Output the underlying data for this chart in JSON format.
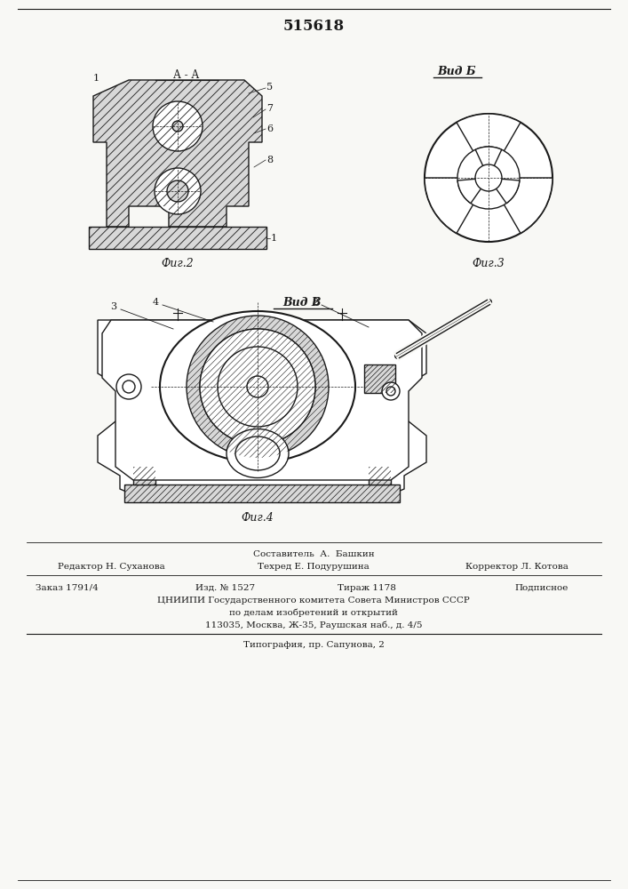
{
  "title": "515618",
  "background_color": "#f8f8f5",
  "fig2_caption": "Фиг.2",
  "fig3_caption": "Фиг.3",
  "fig4_caption": "Фиг.4",
  "view_b_label": "Вид Б",
  "view_v_label": "Вид В",
  "aa_label": "А - А",
  "footer_line1": "Составитель  А.  Башкин",
  "footer_line2_left": "Редактор Н. Суханова",
  "footer_line2_mid": "Техред Е. Подурушина",
  "footer_line2_right": "Корректор Л. Котова",
  "footer_line3_left": "Заказ 1791/4",
  "footer_line3_mid1": "Изд. № 1527",
  "footer_line3_mid2": "Тираж 1178",
  "footer_line3_right": "Подписное",
  "footer_line4": "ЦНИИПИ Государственного комитета Совета Министров СССР",
  "footer_line5": "по делам изобретений и открытий",
  "footer_line6": "113035, Москва, Ж-35, Раушская наб., д. 4/5",
  "footer_line7": "Типография, пр. Сапунова, 2",
  "line_color": "#1a1a1a",
  "fill_hatch": "#d8d8d8",
  "fill_white": "#ffffff",
  "fill_light": "#e8e8e8"
}
